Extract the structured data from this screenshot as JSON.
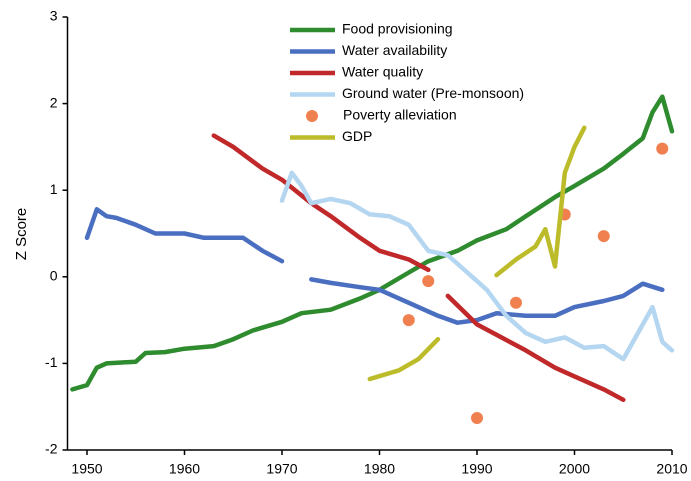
{
  "chart_data": {
    "type": "line",
    "ylabel": "Z Score",
    "xlim": [
      1948,
      2010
    ],
    "xticks": [
      1950,
      1960,
      1970,
      1980,
      1990,
      2000,
      2010
    ],
    "ylim": [
      -2,
      3
    ],
    "yticks": [
      -2,
      -1,
      0,
      1,
      2,
      3
    ],
    "grid": false,
    "legend": "top",
    "series": [
      {
        "name": "Food provisioning",
        "color": "#2e8b2e",
        "x": [
          1948.5,
          1950,
          1951,
          1952,
          1955,
          1956,
          1958,
          1960,
          1963,
          1965,
          1967,
          1970,
          1972,
          1975,
          1978,
          1980,
          1983,
          1985,
          1988,
          1990,
          1993,
          1995,
          1998,
          2000,
          2003,
          2005,
          2007,
          2008,
          2009,
          2010
        ],
        "values": [
          -1.3,
          -1.25,
          -1.05,
          -1.0,
          -0.98,
          -0.88,
          -0.87,
          -0.83,
          -0.8,
          -0.72,
          -0.62,
          -0.52,
          -0.42,
          -0.38,
          -0.25,
          -0.15,
          0.05,
          0.18,
          0.3,
          0.42,
          0.55,
          0.7,
          0.92,
          1.05,
          1.25,
          1.42,
          1.6,
          1.9,
          2.08,
          1.68
        ]
      },
      {
        "name": "Water availability",
        "color": "#4a6fc0",
        "x": [
          1950,
          1951,
          1952,
          1953,
          1955,
          1957,
          1960,
          1962,
          1965,
          1966,
          1968,
          1970,
          1972,
          1973,
          1975,
          1978,
          1980,
          1983,
          1986,
          1988,
          1990,
          1992,
          1995,
          1998,
          2000,
          2003,
          2005,
          2007,
          2009
        ],
        "values": [
          0.45,
          0.78,
          0.7,
          0.68,
          0.6,
          0.5,
          0.5,
          0.45,
          0.45,
          0.45,
          0.3,
          0.18,
          null,
          -0.03,
          -0.07,
          -0.12,
          -0.15,
          -0.3,
          -0.45,
          -0.53,
          -0.5,
          -0.42,
          -0.45,
          -0.45,
          -0.35,
          -0.28,
          -0.22,
          -0.08,
          -0.15
        ]
      },
      {
        "name": "Water quality",
        "color": "#c0282a",
        "x": [
          1963,
          1965,
          1968,
          1970,
          1973,
          1975,
          1978,
          1980,
          1983,
          1985,
          1986,
          1987,
          1990,
          1993,
          1995,
          1998,
          2000,
          2003,
          2005
        ],
        "values": [
          1.63,
          1.5,
          1.25,
          1.12,
          0.85,
          0.7,
          0.45,
          0.3,
          0.2,
          0.08,
          null,
          -0.22,
          -0.55,
          -0.73,
          -0.85,
          -1.05,
          -1.15,
          -1.3,
          -1.42
        ]
      },
      {
        "name": "Ground water (Pre-monsoon)",
        "color": "#b4d6f0",
        "x": [
          1970,
          1971,
          1972,
          1973,
          1975,
          1977,
          1979,
          1981,
          1983,
          1985,
          1987,
          1989,
          1991,
          1993,
          1995,
          1997,
          1999,
          2001,
          2003,
          2005,
          2007,
          2008,
          2009,
          2010
        ],
        "values": [
          0.88,
          1.2,
          1.05,
          0.85,
          0.9,
          0.85,
          0.72,
          0.7,
          0.6,
          0.3,
          0.25,
          0.05,
          -0.15,
          -0.45,
          -0.65,
          -0.75,
          -0.7,
          -0.82,
          -0.8,
          -0.95,
          -0.55,
          -0.35,
          -0.75,
          -0.85
        ]
      },
      {
        "name": "Poverty alleviation",
        "color": "#f08050",
        "marker": "dot",
        "x": [
          1983,
          1985,
          1990,
          1994,
          1999,
          2003,
          2009
        ],
        "values": [
          -0.5,
          -0.05,
          -1.63,
          -0.3,
          0.72,
          0.47,
          1.48
        ]
      },
      {
        "name": "GDP",
        "color": "#bcbc2a",
        "x": [
          1979,
          1982,
          1984,
          1986,
          1989,
          1992,
          1994,
          1996,
          1997,
          1998,
          1999,
          2000,
          2001
        ],
        "values": [
          -1.18,
          -1.08,
          -0.95,
          -0.72,
          null,
          0.02,
          0.2,
          0.35,
          0.55,
          0.12,
          1.2,
          1.5,
          1.72
        ]
      }
    ]
  }
}
